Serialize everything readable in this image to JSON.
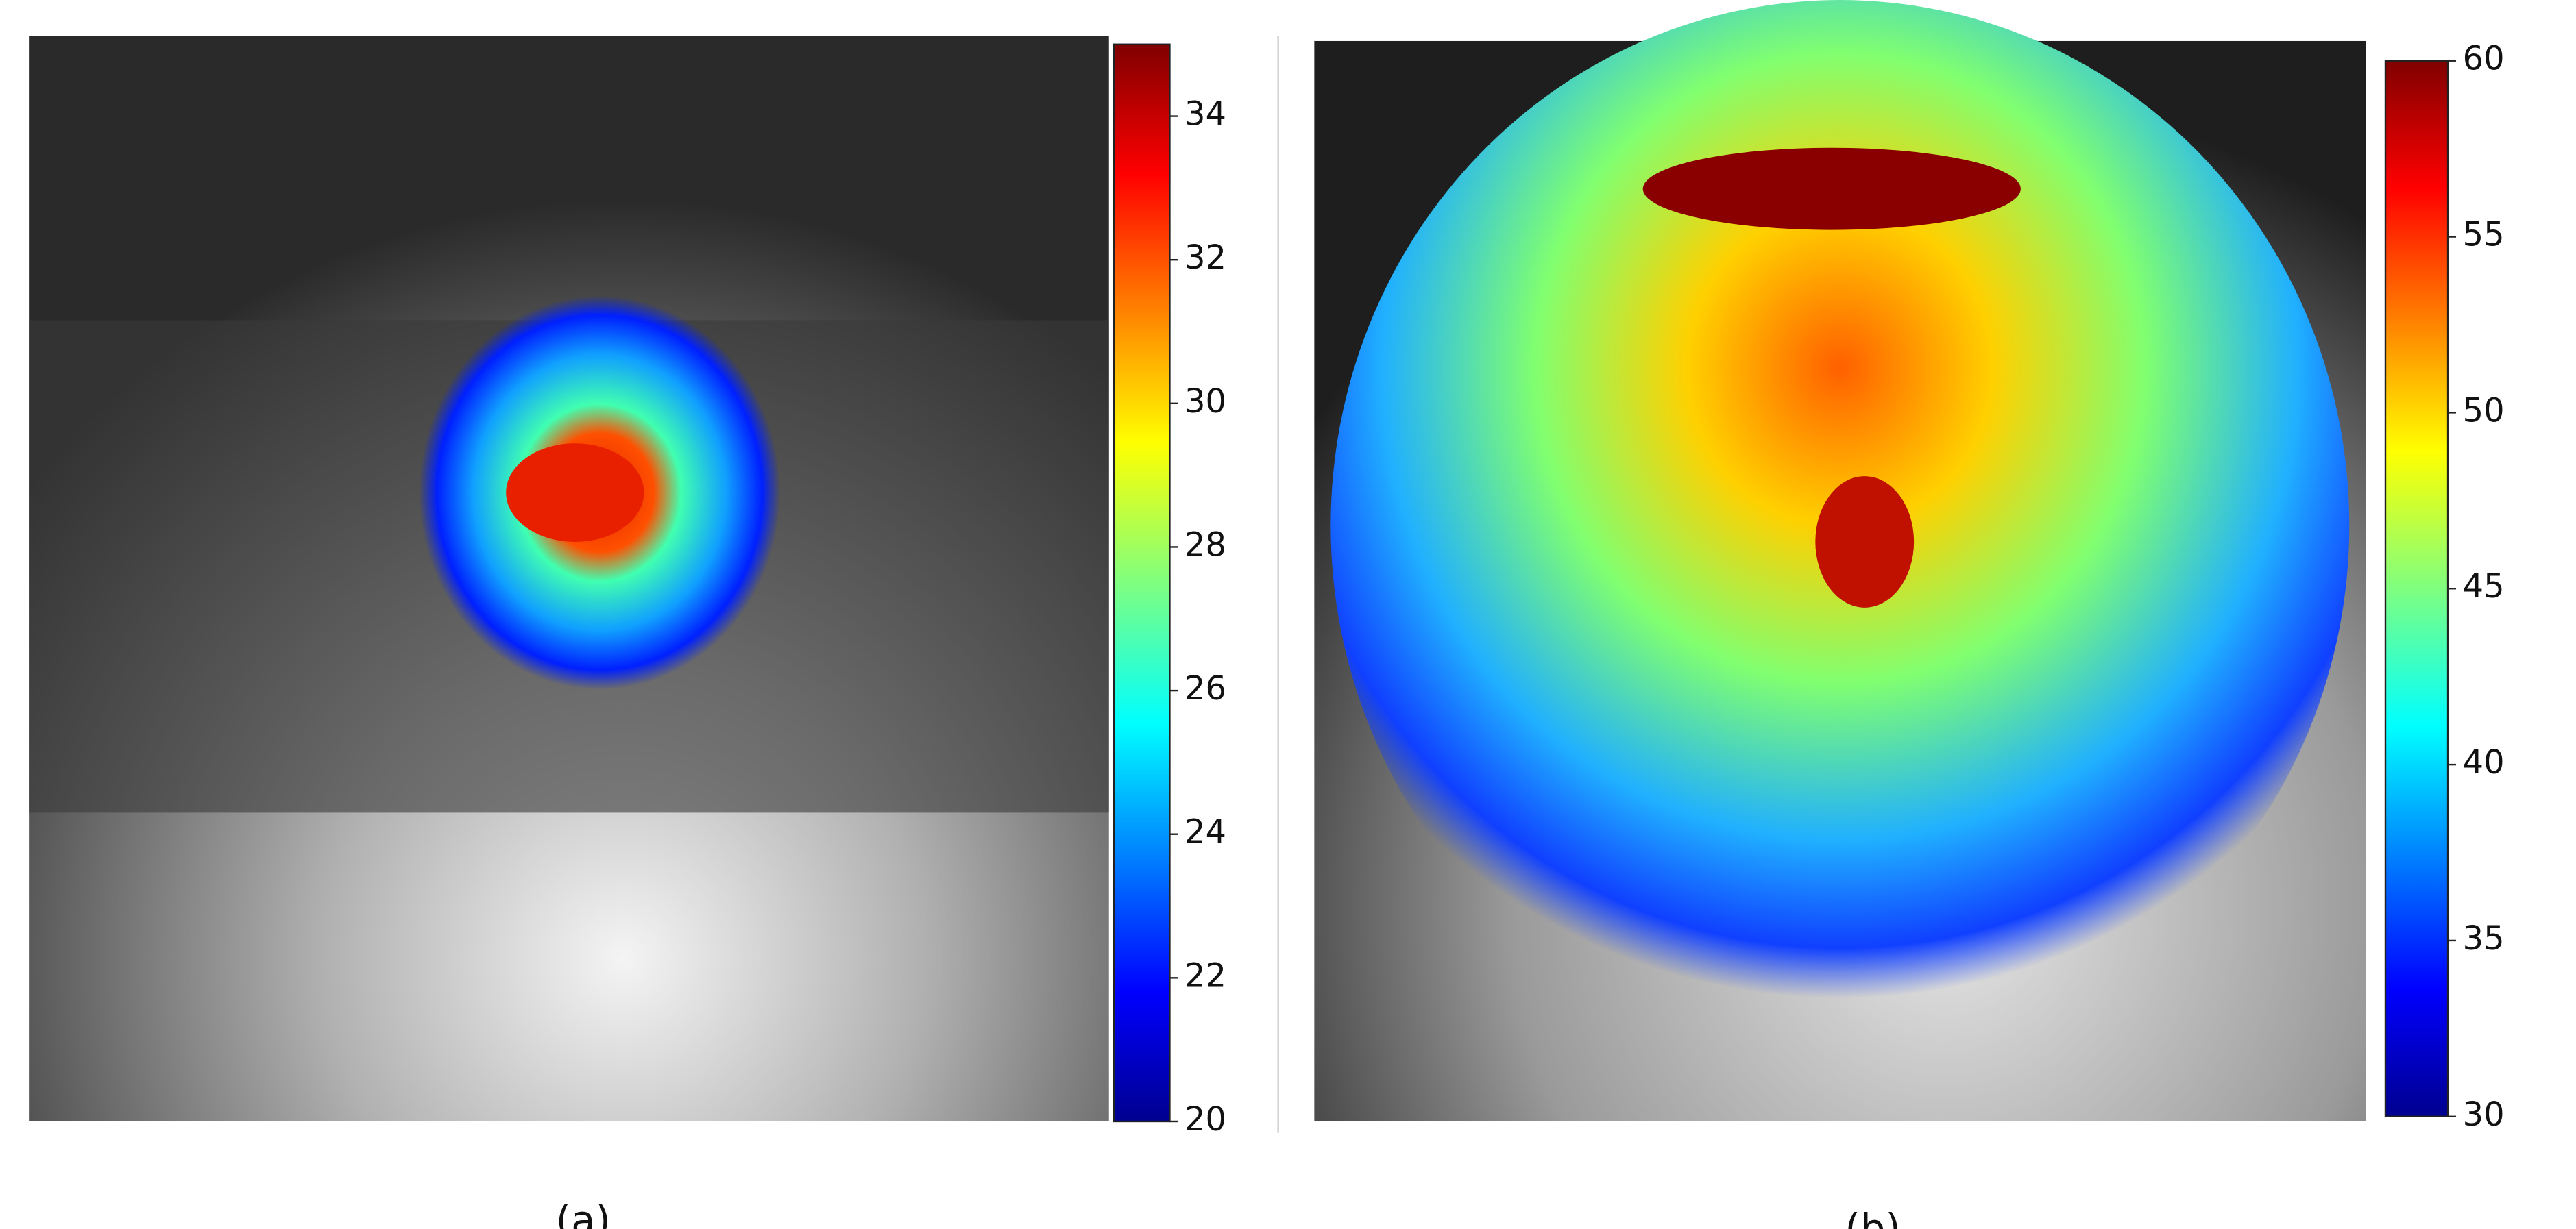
{
  "chart_data": [
    {
      "type": "heatmap",
      "label": "(a)",
      "zlim": [
        20,
        35
      ],
      "zticks": [
        20,
        22,
        24,
        26,
        28,
        30,
        32,
        34
      ]
    },
    {
      "type": "heatmap",
      "label": "(b)",
      "zlim": [
        30,
        60
      ],
      "zticks": [
        30,
        35,
        40,
        45,
        50,
        55,
        60
      ]
    }
  ]
}
